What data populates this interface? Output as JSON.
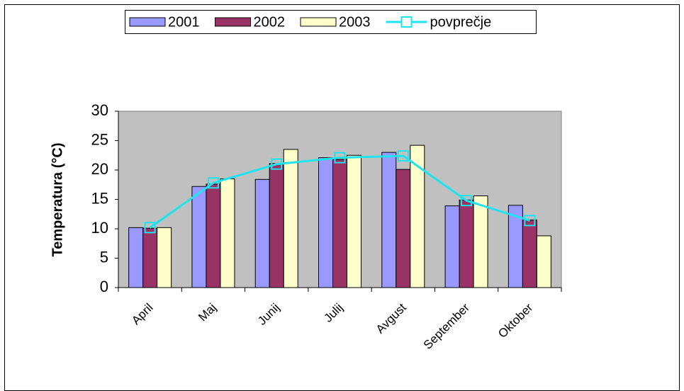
{
  "chart_data": {
    "type": "bar",
    "y_label": "Temperatura (°C)",
    "categories": [
      "April",
      "Maj",
      "Junij",
      "Julij",
      "Avgust",
      "September",
      "Oktober"
    ],
    "series": [
      {
        "name": "2001",
        "color": "#9999ff",
        "values": [
          10.2,
          17.2,
          18.4,
          22.1,
          23.0,
          13.9,
          14.0
        ]
      },
      {
        "name": "2002",
        "color": "#993366",
        "values": [
          10.1,
          17.6,
          21.1,
          21.8,
          20.1,
          14.9,
          11.5
        ]
      },
      {
        "name": "2003",
        "color": "#ffffcc",
        "values": [
          10.2,
          18.5,
          23.5,
          22.5,
          24.2,
          15.6,
          8.8
        ]
      },
      {
        "name": "povprečje",
        "type": "line",
        "color": "#1de4ee",
        "values": [
          10.2,
          17.8,
          21.0,
          22.1,
          22.4,
          14.8,
          11.4
        ]
      }
    ],
    "ylim": [
      0,
      30
    ],
    "yticks": [
      0,
      5,
      10,
      15,
      20,
      25,
      30
    ],
    "plot_background": "#c0c0c0",
    "legend": "top"
  }
}
